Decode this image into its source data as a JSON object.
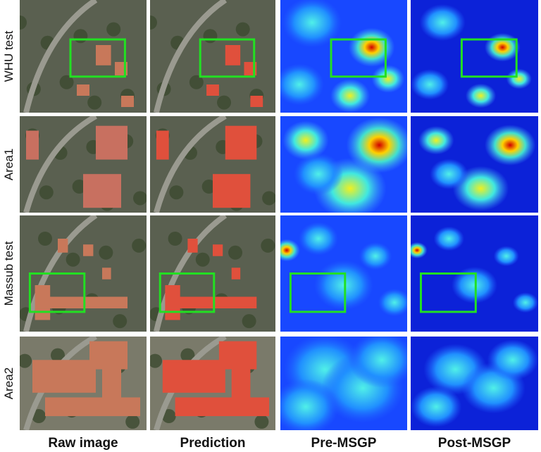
{
  "row_labels": [
    "WHU test",
    "Area1",
    "Massub test",
    "Area2"
  ],
  "column_labels": [
    "Raw image",
    "Prediction",
    "Pre-MSGP",
    "Post-MSGP"
  ]
}
